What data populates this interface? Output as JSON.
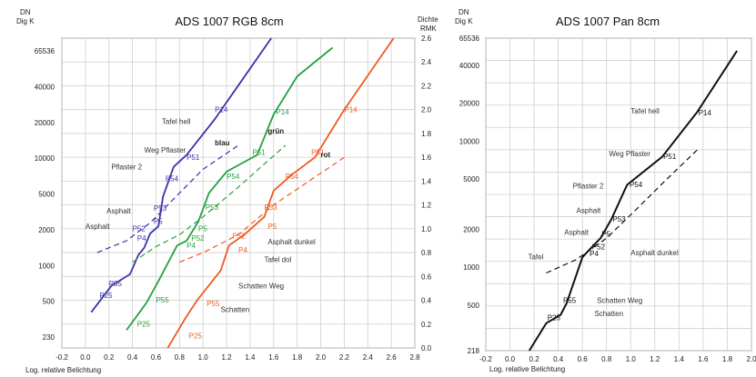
{
  "chart_data": [
    {
      "type": "line",
      "title": "ADS 1007 RGB 8cm",
      "xlabel": "Log. relative Belichtung",
      "ylabel_left": [
        "DN",
        "Dig K"
      ],
      "ylabel_right": [
        "Dichte",
        "RMK"
      ],
      "xlim": [
        -0.2,
        2.8
      ],
      "x_ticks": [
        "-0.2",
        "0.0",
        "0.2",
        "0.4",
        "0.6",
        "0.8",
        "1.0",
        "1.2",
        "1.4",
        "1.6",
        "1.8",
        "2.0",
        "2.2",
        "2.4",
        "2.6",
        "2.8"
      ],
      "y_left_ticks": [
        "65536",
        "40000",
        "20000",
        "10000",
        "5000",
        "2000",
        "1000",
        "500",
        "230"
      ],
      "y_right_ticks": [
        "2.6",
        "2.4",
        "2.2",
        "2.0",
        "1.8",
        "1.6",
        "1.4",
        "1.2",
        "1.0",
        "0.8",
        "0.6",
        "0.4",
        "0.2",
        "0.0"
      ],
      "ylim": [
        0.0,
        2.6
      ],
      "grid": true,
      "series": [
        {
          "name": "blau",
          "color": "#3b32a8",
          "style": "solid",
          "x": [
            0.05,
            0.22,
            0.38,
            0.45,
            0.5,
            0.55,
            0.62,
            0.66,
            0.75,
            0.86,
            1.1,
            1.58
          ],
          "y": [
            0.3,
            0.52,
            0.62,
            0.78,
            0.84,
            0.96,
            1.02,
            1.27,
            1.52,
            1.62,
            1.92,
            2.6
          ]
        },
        {
          "name": "blau",
          "color": "#3b32a8",
          "style": "dashed",
          "x": [
            0.1,
            0.35,
            0.55,
            0.8,
            1.0,
            1.3
          ],
          "y": [
            0.8,
            0.9,
            1.05,
            1.3,
            1.5,
            1.7
          ]
        },
        {
          "name": "grün",
          "color": "#26a040",
          "style": "solid",
          "x": [
            0.35,
            0.52,
            0.62,
            0.78,
            0.86,
            0.96,
            1.05,
            1.2,
            1.46,
            1.6,
            1.8,
            2.1
          ],
          "y": [
            0.15,
            0.38,
            0.56,
            0.86,
            0.9,
            1.06,
            1.3,
            1.48,
            1.62,
            1.96,
            2.28,
            2.52
          ]
        },
        {
          "name": "grün",
          "color": "#26a040",
          "style": "dashed",
          "x": [
            0.4,
            0.6,
            0.8,
            1.0,
            1.3,
            1.7
          ],
          "y": [
            0.72,
            0.85,
            0.95,
            1.1,
            1.35,
            1.7
          ]
        },
        {
          "name": "rot",
          "color": "#f05a20",
          "style": "solid",
          "x": [
            0.7,
            0.85,
            0.95,
            1.15,
            1.22,
            1.35,
            1.52,
            1.6,
            1.75,
            1.95,
            2.2,
            2.62
          ],
          "y": [
            0.0,
            0.25,
            0.4,
            0.65,
            0.86,
            0.95,
            1.1,
            1.32,
            1.45,
            1.6,
            2.0,
            2.6
          ]
        },
        {
          "name": "rot",
          "color": "#f05a20",
          "style": "dashed",
          "x": [
            0.8,
            1.0,
            1.3,
            1.6,
            1.9,
            2.2
          ],
          "y": [
            0.72,
            0.8,
            0.95,
            1.2,
            1.4,
            1.6
          ]
        }
      ],
      "series_labels": [
        {
          "text": "blau",
          "x": 1.1,
          "y": 1.7,
          "color": "#222222"
        },
        {
          "text": "grün",
          "x": 1.55,
          "y": 1.8,
          "color": "#222222"
        },
        {
          "text": "rot",
          "x": 2.0,
          "y": 1.6,
          "color": "#222222"
        }
      ],
      "point_labels": [
        {
          "text": "P14",
          "x": 1.1,
          "y": 1.98,
          "color": "#3b32a8"
        },
        {
          "text": "P51",
          "x": 0.86,
          "y": 1.58,
          "color": "#3b32a8"
        },
        {
          "text": "P54",
          "x": 0.68,
          "y": 1.4,
          "color": "#3b32a8"
        },
        {
          "text": "P53",
          "x": 0.58,
          "y": 1.15,
          "color": "#3b32a8"
        },
        {
          "text": "P5",
          "x": 0.58,
          "y": 1.04,
          "color": "#3b32a8"
        },
        {
          "text": "P52",
          "x": 0.4,
          "y": 0.98,
          "color": "#3b32a8"
        },
        {
          "text": "P4",
          "x": 0.44,
          "y": 0.9,
          "color": "#3b32a8"
        },
        {
          "text": "P55",
          "x": 0.2,
          "y": 0.52,
          "color": "#3b32a8"
        },
        {
          "text": "P25",
          "x": 0.12,
          "y": 0.42,
          "color": "#3b32a8"
        },
        {
          "text": "P14",
          "x": 1.62,
          "y": 1.96,
          "color": "#26a040"
        },
        {
          "text": "P51",
          "x": 1.42,
          "y": 1.62,
          "color": "#26a040"
        },
        {
          "text": "P54",
          "x": 1.2,
          "y": 1.42,
          "color": "#26a040"
        },
        {
          "text": "P53",
          "x": 1.02,
          "y": 1.16,
          "color": "#26a040"
        },
        {
          "text": "P5",
          "x": 0.96,
          "y": 0.98,
          "color": "#26a040"
        },
        {
          "text": "P52",
          "x": 0.9,
          "y": 0.9,
          "color": "#26a040"
        },
        {
          "text": "P4",
          "x": 0.86,
          "y": 0.84,
          "color": "#26a040"
        },
        {
          "text": "P55",
          "x": 0.6,
          "y": 0.38,
          "color": "#26a040"
        },
        {
          "text": "P25",
          "x": 0.44,
          "y": 0.18,
          "color": "#26a040"
        },
        {
          "text": "P14",
          "x": 2.2,
          "y": 1.98,
          "color": "#f05a20"
        },
        {
          "text": "P51",
          "x": 1.92,
          "y": 1.62,
          "color": "#f05a20"
        },
        {
          "text": "P54",
          "x": 1.7,
          "y": 1.42,
          "color": "#f05a20"
        },
        {
          "text": "P53",
          "x": 1.52,
          "y": 1.16,
          "color": "#f05a20"
        },
        {
          "text": "P5",
          "x": 1.55,
          "y": 1.0,
          "color": "#f05a20"
        },
        {
          "text": "P52",
          "x": 1.25,
          "y": 0.92,
          "color": "#f05a20"
        },
        {
          "text": "P4",
          "x": 1.3,
          "y": 0.8,
          "color": "#f05a20"
        },
        {
          "text": "P55",
          "x": 1.03,
          "y": 0.35,
          "color": "#f05a20"
        },
        {
          "text": "P25",
          "x": 0.88,
          "y": 0.08,
          "color": "#f05a20"
        }
      ],
      "annotations": [
        {
          "text": "Tafel hell",
          "x": 0.65,
          "y": 1.88
        },
        {
          "text": "Weg Pflaster",
          "x": 0.5,
          "y": 1.64
        },
        {
          "text": "Pflaster 2",
          "x": 0.22,
          "y": 1.5
        },
        {
          "text": "Asphalt",
          "x": 0.18,
          "y": 1.13
        },
        {
          "text": "Asphalt",
          "x": 0.0,
          "y": 1.0
        },
        {
          "text": "Asphalt dunkel",
          "x": 1.55,
          "y": 0.87
        },
        {
          "text": "Tafel dol",
          "x": 1.52,
          "y": 0.72
        },
        {
          "text": "Schatten Weg",
          "x": 1.3,
          "y": 0.5
        },
        {
          "text": "Schatten",
          "x": 1.15,
          "y": 0.3
        }
      ]
    },
    {
      "type": "line",
      "title": "ADS 1007 Pan 8cm",
      "xlabel": "Log. relative Belichtung",
      "ylabel_left": [
        "DN",
        "Dig K"
      ],
      "xlim": [
        -0.2,
        2.0
      ],
      "x_ticks": [
        "-0.2",
        "0.0",
        "0.2",
        "0.4",
        "0.6",
        "0.8",
        "1.0",
        "1.2",
        "1.4",
        "1.6",
        "1.8",
        "2.0"
      ],
      "y_left_ticks": [
        "65536",
        "40000",
        "20000",
        "10000",
        "5000",
        "2000",
        "1000",
        "500",
        "218"
      ],
      "ylim": [
        218,
        65536
      ],
      "grid": true,
      "series": [
        {
          "name": "",
          "color": "#111111",
          "style": "solid",
          "x": [
            0.16,
            0.3,
            0.42,
            0.47,
            0.6,
            0.64,
            0.75,
            0.84,
            0.97,
            1.26,
            1.55,
            1.88
          ],
          "y": [
            218,
            360,
            420,
            520,
            1200,
            1320,
            1700,
            2400,
            4500,
            7500,
            17000,
            52000
          ]
        },
        {
          "name": "",
          "color": "#111111",
          "style": "dashed",
          "x": [
            0.3,
            0.55,
            0.8,
            1.05,
            1.3,
            1.55
          ],
          "y": [
            900,
            1150,
            1700,
            2900,
            5000,
            8500
          ]
        }
      ],
      "point_labels": [
        {
          "text": "P14",
          "x": 1.56,
          "y": 16000
        },
        {
          "text": "P51",
          "x": 1.27,
          "y": 7200
        },
        {
          "text": "P54",
          "x": 0.99,
          "y": 4300
        },
        {
          "text": "P53",
          "x": 0.85,
          "y": 2300
        },
        {
          "text": "P5",
          "x": 0.76,
          "y": 1750
        },
        {
          "text": "P52",
          "x": 0.68,
          "y": 1380
        },
        {
          "text": "P4",
          "x": 0.66,
          "y": 1220
        },
        {
          "text": "P55",
          "x": 0.44,
          "y": 520
        },
        {
          "text": "P25",
          "x": 0.31,
          "y": 380
        }
      ],
      "annotations": [
        {
          "text": "Tafel hell",
          "x": 1.0,
          "y": 16500
        },
        {
          "text": "Weg Pflaster",
          "x": 0.82,
          "y": 7600
        },
        {
          "text": "Pflaster 2",
          "x": 0.52,
          "y": 4200
        },
        {
          "text": "Asphalt",
          "x": 0.55,
          "y": 2700
        },
        {
          "text": "Asphalt",
          "x": 0.45,
          "y": 1800
        },
        {
          "text": "Asphalt dunkel",
          "x": 1.0,
          "y": 1240
        },
        {
          "text": "Tafel",
          "x": 0.15,
          "y": 1150
        },
        {
          "text": "Schatten Weg",
          "x": 0.72,
          "y": 520
        },
        {
          "text": "Schatten",
          "x": 0.7,
          "y": 410
        }
      ]
    }
  ]
}
